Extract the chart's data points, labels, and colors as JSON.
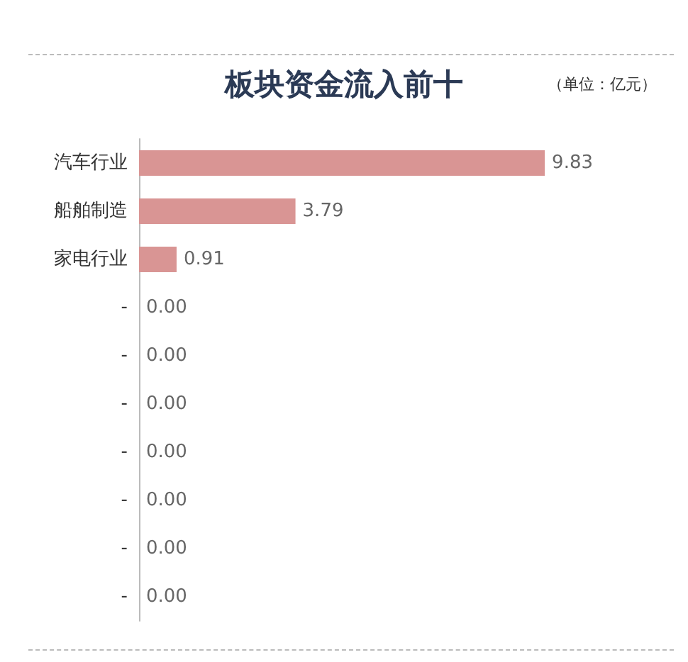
{
  "chart_data": {
    "type": "bar",
    "orientation": "horizontal",
    "title": "板块资金流入前十",
    "annotations": [
      "（单位：亿元）"
    ],
    "categories": [
      "汽车行业",
      "船舶制造",
      "家电行业",
      "-",
      "-",
      "-",
      "-",
      "-",
      "-",
      "-"
    ],
    "values": [
      9.83,
      3.79,
      0.91,
      0,
      0,
      0,
      0,
      0,
      0,
      0
    ],
    "value_labels": [
      "9.83",
      "3.79",
      "0.91",
      "0.00",
      "0.00",
      "0.00",
      "0.00",
      "0.00",
      "0.00",
      "0.00"
    ],
    "color": "#d99594"
  }
}
